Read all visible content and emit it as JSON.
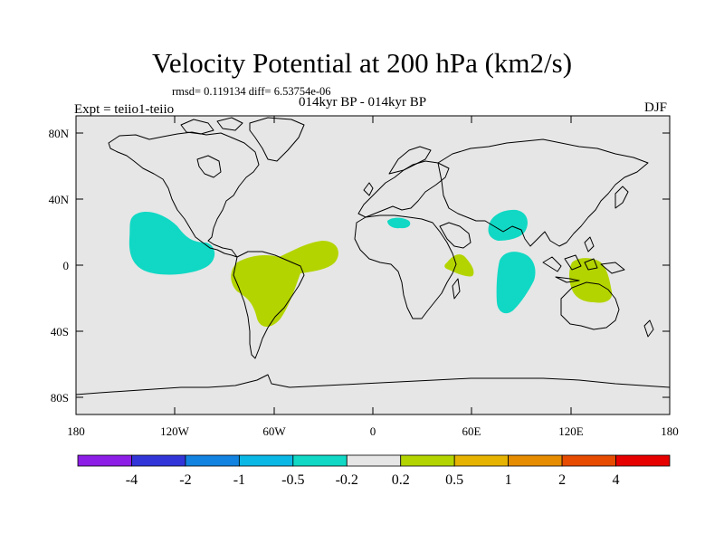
{
  "title": "Velocity Potential at 200 hPa (km2/s)",
  "stats": "rmsd= 0.119134 diff= 6.53754e-06",
  "left_label": "Expt = teiio1-teiio",
  "center_label": "014kyr BP - 014kyr BP",
  "right_label": "DJF",
  "map": {
    "lon_range": [
      -180,
      180
    ],
    "lat_range": [
      -90,
      90
    ],
    "x_ticks": [
      "180",
      "120W",
      "60W",
      "0",
      "60E",
      "120E",
      "180"
    ],
    "y_ticks": [
      "80N",
      "40N",
      "0",
      "40S",
      "80S"
    ],
    "ocean_color": "#e6e6e6"
  },
  "anomalies": [
    {
      "name": "northeast-pacific-negative",
      "class": "-0.5 to -0.2",
      "color": "#10d8c4"
    },
    {
      "name": "south-america-atlantic-positive",
      "class": "0.2 to 0.5",
      "color": "#b4d400"
    },
    {
      "name": "north-africa-negative",
      "class": "-0.5 to -0.2",
      "color": "#10d8c4"
    },
    {
      "name": "east-africa-positive",
      "class": "0.2 to 0.5",
      "color": "#b4d400"
    },
    {
      "name": "bay-of-bengal-negative",
      "class": "-0.5 to -0.2",
      "color": "#10d8c4"
    },
    {
      "name": "indian-ocean-negative",
      "class": "-0.5 to -0.2",
      "color": "#10d8c4"
    },
    {
      "name": "maritime-continent-positive",
      "class": "0.2 to 0.5",
      "color": "#b4d400"
    }
  ],
  "colorbar": {
    "colors": [
      "#8d1ee6",
      "#3236d8",
      "#1283e0",
      "#0ab8e6",
      "#10d8c4",
      "#e6e6e6",
      "#b4d400",
      "#e6b400",
      "#e68c00",
      "#e64b00",
      "#e60000"
    ],
    "labels": [
      "-4",
      "-2",
      "-1",
      "-0.5",
      "-0.2",
      "0.2",
      "0.5",
      "1",
      "2",
      "4"
    ]
  }
}
